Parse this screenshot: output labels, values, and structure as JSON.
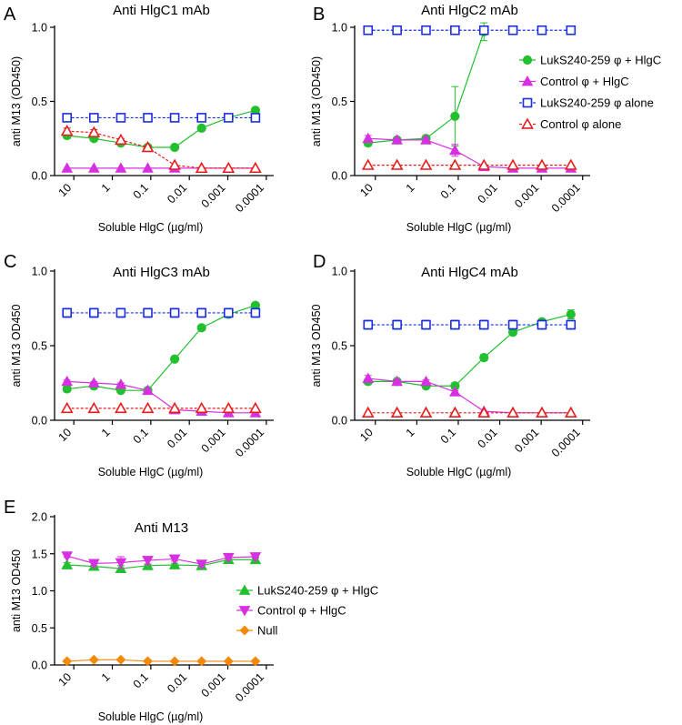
{
  "chart_data": [
    {
      "type": "line",
      "letter": "A",
      "title": "Anti HlgC1 mAb",
      "xlabel": "Soluble HlgC (µg/ml)",
      "ylabel": "anti M13 (OD450)",
      "ylim": [
        0,
        1.0
      ],
      "yticks": [
        "0.0",
        "0.5",
        "1.0"
      ],
      "xtick_labels": [
        "10",
        "1",
        "0.1",
        "0.01",
        "0.001",
        "0.0001"
      ],
      "x": [
        15.0,
        3.0,
        0.6,
        0.12,
        0.024,
        0.0048,
        0.00096,
        0.000192
      ],
      "series": [
        {
          "name": "LukS240-259 φ + HlgC",
          "style": "green-circle",
          "values": [
            0.27,
            0.25,
            0.22,
            0.19,
            0.19,
            0.32,
            0.39,
            0.44
          ],
          "errors": [
            0.02,
            0.01,
            0.01,
            0.01,
            0.01,
            0.01,
            0.01,
            0.01
          ]
        },
        {
          "name": "Control φ + HlgC",
          "style": "magenta-triangle-up",
          "values": [
            0.05,
            0.05,
            0.05,
            0.05,
            0.05,
            0.05,
            0.05,
            0.05
          ],
          "errors": [
            0,
            0,
            0,
            0,
            0,
            0,
            0,
            0
          ]
        },
        {
          "name": "LukS240-259 φ alone",
          "style": "blue-open-square",
          "values": [
            0.39,
            0.39,
            0.39,
            0.39,
            0.39,
            0.39,
            0.39,
            0.39
          ],
          "errors": [
            0,
            0,
            0,
            0,
            0,
            0,
            0,
            0
          ]
        },
        {
          "name": "Control φ alone",
          "style": "red-open-triangle",
          "values": [
            0.3,
            0.29,
            0.24,
            0.19,
            0.07,
            0.05,
            0.05,
            0.05
          ],
          "errors": [
            0.02,
            0.02,
            0.01,
            0.01,
            0,
            0,
            0,
            0
          ]
        }
      ]
    },
    {
      "type": "line",
      "letter": "B",
      "title": "Anti HlgC2 mAb",
      "xlabel": "Soluble HlgC (µg/ml)",
      "ylabel": "anti M13 (OD450)",
      "ylim": [
        0,
        1.0
      ],
      "yticks": [
        "0.0",
        "0.5",
        "1.0"
      ],
      "xtick_labels": [
        "10",
        "1",
        "0.1",
        "0.01",
        "0.001",
        "0.0001"
      ],
      "x": [
        15.0,
        3.0,
        0.6,
        0.12,
        0.024,
        0.0048,
        0.00096,
        0.000192
      ],
      "legend": {
        "placement": "right",
        "entries": [
          {
            "label": "LukS240-259 φ + HlgC",
            "style": "green-circle"
          },
          {
            "label": "Control φ + HlgC",
            "style": "magenta-triangle-up"
          },
          {
            "label": "LukS240-259 φ alone",
            "style": "blue-open-square"
          },
          {
            "label": "Control φ alone",
            "style": "red-open-triangle"
          }
        ]
      },
      "series": [
        {
          "name": "LukS240-259 φ + HlgC",
          "style": "green-circle",
          "values": [
            0.22,
            0.24,
            0.25,
            0.4,
            0.97,
            null,
            null,
            null
          ],
          "errors": [
            0.02,
            0.01,
            0.02,
            0.2,
            0.06,
            0,
            0,
            0
          ]
        },
        {
          "name": "Control φ + HlgC",
          "style": "magenta-triangle-up",
          "values": [
            0.25,
            0.24,
            0.24,
            0.17,
            0.06,
            0.05,
            0.05,
            0.05
          ],
          "errors": [
            0.02,
            0.01,
            0.02,
            0.04,
            0.01,
            0,
            0,
            0
          ]
        },
        {
          "name": "LukS240-259 φ alone",
          "style": "blue-open-square",
          "values": [
            0.98,
            0.98,
            0.98,
            0.98,
            0.98,
            0.98,
            0.98,
            0.98
          ],
          "errors": [
            0,
            0,
            0,
            0,
            0,
            0,
            0,
            0
          ]
        },
        {
          "name": "Control φ alone",
          "style": "red-open-triangle",
          "values": [
            0.07,
            0.07,
            0.07,
            0.07,
            0.07,
            0.07,
            0.07,
            0.07
          ],
          "errors": [
            0,
            0,
            0,
            0,
            0,
            0,
            0,
            0
          ]
        }
      ]
    },
    {
      "type": "line",
      "letter": "C",
      "title": "Anti HlgC3 mAb",
      "xlabel": "Soluble HlgC (µg/ml)",
      "ylabel": "anti M13 OD450",
      "ylim": [
        0,
        1.0
      ],
      "yticks": [
        "0.0",
        "0.5",
        "1.0"
      ],
      "xtick_labels": [
        "10",
        "1",
        "0.1",
        "0.01",
        "0.001",
        "0.0001"
      ],
      "x": [
        15.0,
        3.0,
        0.6,
        0.12,
        0.024,
        0.0048,
        0.00096,
        0.000192
      ],
      "series": [
        {
          "name": "LukS240-259 φ + HlgC",
          "style": "green-circle",
          "values": [
            0.21,
            0.23,
            0.2,
            0.2,
            0.41,
            0.62,
            0.71,
            0.77
          ],
          "errors": [
            0.02,
            0.02,
            0.01,
            0.01,
            0.01,
            0.01,
            0.02,
            0.01
          ]
        },
        {
          "name": "Control φ + HlgC",
          "style": "magenta-triangle-up",
          "values": [
            0.26,
            0.25,
            0.24,
            0.2,
            0.07,
            0.06,
            0.05,
            0.05
          ],
          "errors": [
            0.01,
            0.01,
            0.01,
            0.01,
            0,
            0,
            0,
            0
          ]
        },
        {
          "name": "LukS240-259 φ alone",
          "style": "blue-open-square",
          "values": [
            0.72,
            0.72,
            0.72,
            0.72,
            0.72,
            0.72,
            0.72,
            0.72
          ],
          "errors": [
            0.03,
            0.03,
            0.03,
            0.03,
            0.03,
            0.03,
            0.03,
            0.03
          ]
        },
        {
          "name": "Control φ alone",
          "style": "red-open-triangle",
          "values": [
            0.08,
            0.08,
            0.08,
            0.08,
            0.08,
            0.08,
            0.08,
            0.08
          ],
          "errors": [
            0,
            0,
            0,
            0,
            0,
            0,
            0,
            0
          ]
        }
      ]
    },
    {
      "type": "line",
      "letter": "D",
      "title": "Anti HlgC4 mAb",
      "xlabel": "Soluble HlgC (µg/ml)",
      "ylabel": "anti M13 OD450",
      "ylim": [
        0,
        1.0
      ],
      "yticks": [
        "0.0",
        "0.5",
        "1.0"
      ],
      "xtick_labels": [
        "10",
        "1",
        "0.1",
        "0.01",
        "0.001",
        "0.0001"
      ],
      "x": [
        15.0,
        3.0,
        0.6,
        0.12,
        0.024,
        0.0048,
        0.00096,
        0.000192
      ],
      "series": [
        {
          "name": "LukS240-259 φ + HlgC",
          "style": "green-circle",
          "values": [
            0.26,
            0.26,
            0.23,
            0.23,
            0.42,
            0.59,
            0.66,
            0.71
          ],
          "errors": [
            0.02,
            0.01,
            0.01,
            0.02,
            0.02,
            0.01,
            0.01,
            0.03
          ]
        },
        {
          "name": "Control φ + HlgC",
          "style": "magenta-triangle-up",
          "values": [
            0.28,
            0.26,
            0.26,
            0.19,
            0.06,
            0.05,
            0.05,
            0.05
          ],
          "errors": [
            0.02,
            0.01,
            0.01,
            0.01,
            0,
            0,
            0,
            0
          ]
        },
        {
          "name": "LukS240-259 φ alone",
          "style": "blue-open-square",
          "values": [
            0.64,
            0.64,
            0.64,
            0.64,
            0.64,
            0.64,
            0.64,
            0.64
          ],
          "errors": [
            0.03,
            0.03,
            0.03,
            0.03,
            0.03,
            0.03,
            0.03,
            0.03
          ]
        },
        {
          "name": "Control φ alone",
          "style": "red-open-triangle",
          "values": [
            0.05,
            0.05,
            0.05,
            0.05,
            0.05,
            0.05,
            0.05,
            0.05
          ],
          "errors": [
            0,
            0,
            0,
            0,
            0,
            0,
            0,
            0
          ]
        }
      ]
    },
    {
      "type": "line",
      "letter": "E",
      "title": "Anti M13",
      "xlabel": "Soluble HlgC (µg/ml)",
      "ylabel": "anti M13 OD450",
      "ylim": [
        0,
        2.0
      ],
      "yticks": [
        "0.0",
        "0.5",
        "1.0",
        "1.5",
        "2.0"
      ],
      "xtick_labels": [
        "10",
        "1",
        "0.1",
        "0.01",
        "0.001",
        "0.0001"
      ],
      "x": [
        15.0,
        3.0,
        0.6,
        0.12,
        0.024,
        0.0048,
        0.00096,
        0.000192
      ],
      "legend": {
        "placement": "lower-right",
        "entries": [
          {
            "label": "LukS240-259 φ + HlgC",
            "style": "green-triangle-up"
          },
          {
            "label": "Control φ + HlgC",
            "style": "magenta-triangle-down"
          },
          {
            "label": "Null",
            "style": "orange-diamond"
          }
        ]
      },
      "series": [
        {
          "name": "LukS240-259 φ + HlgC",
          "style": "green-triangle-up",
          "values": [
            1.35,
            1.33,
            1.3,
            1.34,
            1.35,
            1.34,
            1.42,
            1.42
          ],
          "errors": [
            0.03,
            0.03,
            0.04,
            0.02,
            0.02,
            0.02,
            0.03,
            0.03
          ]
        },
        {
          "name": "Control φ + HlgC",
          "style": "magenta-triangle-down",
          "values": [
            1.47,
            1.37,
            1.38,
            1.41,
            1.43,
            1.36,
            1.45,
            1.46
          ],
          "errors": [
            0.02,
            0.03,
            0.08,
            0.05,
            0.03,
            0.03,
            0.02,
            0.02
          ]
        },
        {
          "name": "Null",
          "style": "orange-diamond",
          "values": [
            0.05,
            0.07,
            0.07,
            0.05,
            0.05,
            0.05,
            0.05,
            0.05
          ],
          "errors": [
            0,
            0,
            0,
            0,
            0,
            0,
            0,
            0
          ]
        }
      ]
    }
  ],
  "styles": {
    "green-circle": {
      "color": "#22c02e",
      "marker": "circle",
      "fill": true,
      "dash": false
    },
    "green-triangle-up": {
      "color": "#22c02e",
      "marker": "triangle-up",
      "fill": true,
      "dash": false
    },
    "magenta-triangle-up": {
      "color": "#d630e0",
      "marker": "triangle-up",
      "fill": true,
      "dash": false
    },
    "magenta-triangle-down": {
      "color": "#d630e0",
      "marker": "triangle-down",
      "fill": true,
      "dash": false
    },
    "blue-open-square": {
      "color": "#1a2ee0",
      "marker": "square",
      "fill": false,
      "dash": true
    },
    "red-open-triangle": {
      "color": "#e81c1c",
      "marker": "triangle-up",
      "fill": false,
      "dash": true
    },
    "orange-diamond": {
      "color": "#f58a0a",
      "marker": "diamond",
      "fill": true,
      "dash": false
    }
  }
}
